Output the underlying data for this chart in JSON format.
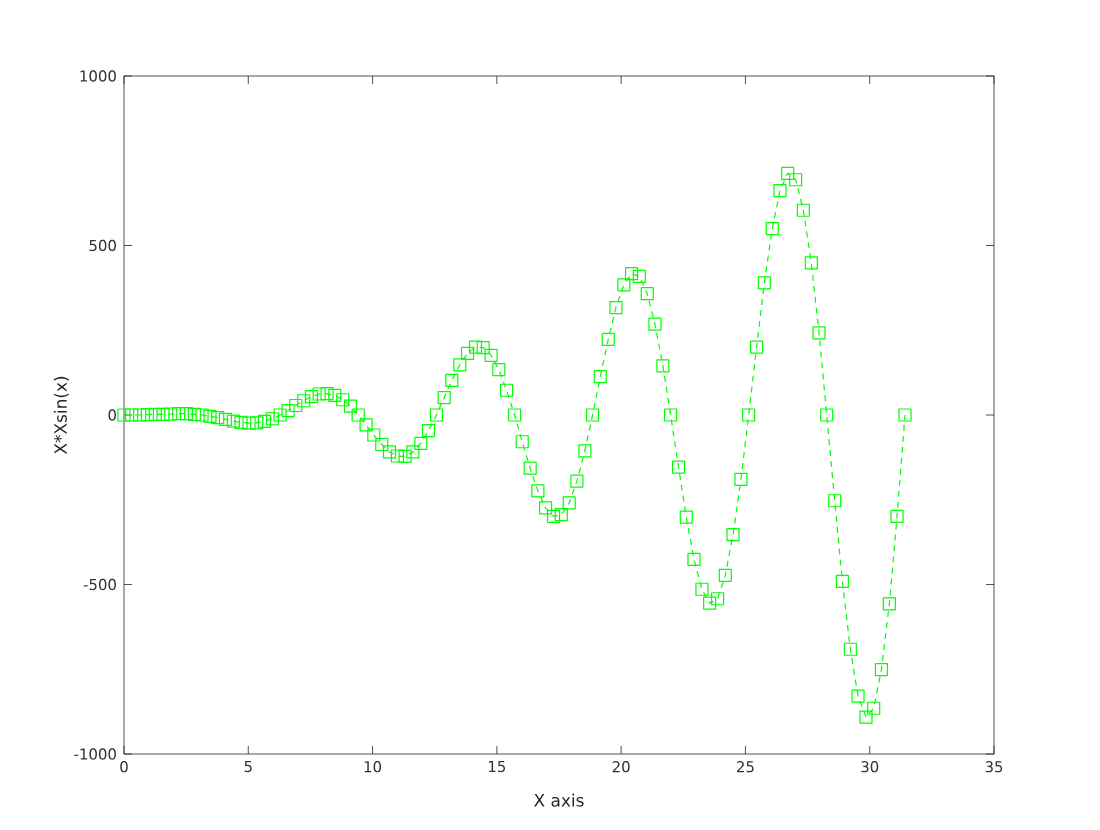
{
  "chart_data": {
    "type": "line",
    "xlabel": "X axis",
    "ylabel": "X*Xsin(x)",
    "x": [
      0,
      0.31,
      0.63,
      0.94,
      1.26,
      1.57,
      1.88,
      2.2,
      2.51,
      2.83,
      3.14,
      3.46,
      3.77,
      4.08,
      4.4,
      4.71,
      5.03,
      5.34,
      5.65,
      5.97,
      6.28,
      6.6,
      6.91,
      7.23,
      7.54,
      7.85,
      8.17,
      8.48,
      8.8,
      9.11,
      9.42,
      9.74,
      10.05,
      10.37,
      10.68,
      11.0,
      11.31,
      11.62,
      11.94,
      12.25,
      12.57,
      12.88,
      13.19,
      13.51,
      13.82,
      14.14,
      14.45,
      14.77,
      15.08,
      15.39,
      15.71,
      16.02,
      16.34,
      16.65,
      16.96,
      17.28,
      17.59,
      17.91,
      18.22,
      18.54,
      18.85,
      19.16,
      19.48,
      19.79,
      20.11,
      20.42,
      20.73,
      21.05,
      21.36,
      21.68,
      21.99,
      22.31,
      22.62,
      22.93,
      23.25,
      23.56,
      23.88,
      24.19,
      24.5,
      24.82,
      25.13,
      25.45,
      25.76,
      26.08,
      26.39,
      26.7,
      27.02,
      27.33,
      27.65,
      27.96,
      28.27,
      28.59,
      28.9,
      29.22,
      29.53,
      29.85,
      30.16,
      30.47,
      30.79,
      31.1,
      31.42
    ],
    "values": [
      0,
      0,
      0,
      1,
      2,
      2,
      3,
      4,
      4,
      2,
      0,
      -4,
      -8,
      -13,
      -18,
      -22,
      -24,
      -23,
      -19,
      -11,
      0,
      13,
      28,
      42,
      54,
      62,
      63,
      58,
      45,
      26,
      0,
      -29,
      -59,
      -87,
      -109,
      -121,
      -122,
      -109,
      -84,
      -46,
      0,
      51,
      102,
      148,
      182,
      200,
      199,
      176,
      134,
      73,
      0,
      -79,
      -157,
      -224,
      -274,
      -299,
      -294,
      -259,
      -195,
      -106,
      0,
      113,
      223,
      317,
      384,
      417,
      409,
      358,
      268,
      145,
      0,
      -154,
      -301,
      -426,
      -514,
      -555,
      -542,
      -473,
      -353,
      -190,
      0,
      200,
      390,
      550,
      662,
      713,
      694,
      604,
      449,
      242,
      0,
      -253,
      -491,
      -691,
      -829,
      -891,
      -865,
      -751,
      -557,
      -299,
      0
    ],
    "color": "#00ff00",
    "marker": "square",
    "line_style": "dashed",
    "xlim": [
      0,
      35
    ],
    "xticks": [
      0,
      5,
      10,
      15,
      20,
      25,
      30,
      35
    ],
    "ylim": [
      -1000,
      1000
    ],
    "yticks": [
      -1000,
      -500,
      0,
      500,
      1000
    ],
    "grid": false,
    "legend": false
  }
}
